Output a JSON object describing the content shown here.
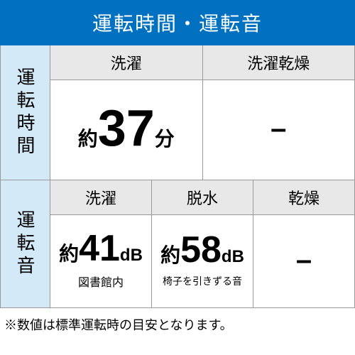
{
  "header": {
    "title": "運転時間・運転音"
  },
  "time": {
    "label": "運転時間",
    "cols": [
      {
        "head": "洗濯",
        "prefix": "約",
        "value": "37",
        "unit": "分"
      },
      {
        "head": "洗濯乾燥",
        "dash": "–"
      }
    ]
  },
  "noise": {
    "label": "運転音",
    "cols": [
      {
        "head": "洗濯",
        "prefix": "約",
        "value": "41",
        "unit": "dB",
        "caption": "図書館内"
      },
      {
        "head": "脱水",
        "prefix": "約",
        "value": "58",
        "unit": "dB",
        "caption": "椅子を引きずる音"
      },
      {
        "head": "乾燥",
        "dash": "–"
      }
    ]
  },
  "footer": {
    "note": "※数値は標準運転時の目安となります。"
  },
  "style": {
    "header_bg": "#0070c0",
    "header_fg": "#ffffff",
    "side_bg": "#d4e9f7",
    "head_bg": "#e8e8e8",
    "border": "#999999",
    "number_fontsize_large": 72,
    "number_fontsize_med": 52,
    "prefix_fontsize": 28,
    "unit_fontsize": 28
  }
}
